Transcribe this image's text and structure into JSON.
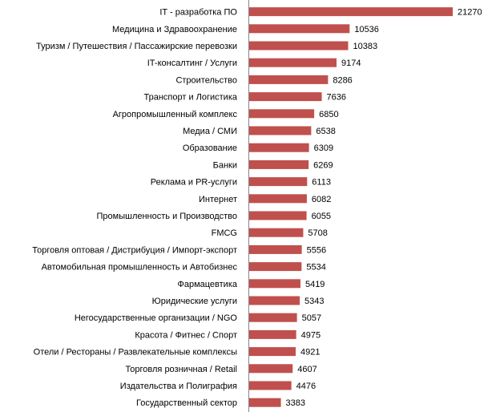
{
  "chart_data": {
    "type": "bar",
    "orientation": "horizontal",
    "title": "",
    "xlabel": "",
    "ylabel": "",
    "xlim": [
      0,
      21270
    ],
    "grid": false,
    "legend": "none",
    "bar_color": "#C0504D",
    "axis_color": "#868686",
    "categories": [
      "IT - разработка ПО",
      "Медицина  и Здравоохранение",
      "Туризм / Путешествия  / Пассажирские перевозки",
      "IT-консалтинг / Услуги",
      "Строительство",
      "Транспорт и Логистика",
      "Агропромышленный  комплекс",
      "Медиа / СМИ",
      "Образование",
      "Банки",
      "Реклама и PR-услуги",
      "Интернет",
      "Промышленность  и Производство",
      "FMCG",
      "Торговля оптовая / Дистрибуция  / Импорт-экспорт",
      "Автомобильная  промышленность и Автобизнес",
      "Фармацевтика",
      "Юридические  услуги",
      "Негосударственные  организации / NGO",
      "Красота / Фитнес / Спорт",
      "Отели / Рестораны / Развлекательные комплексы",
      "Торговля розничная / Retail",
      "Издательства и Полиграфия",
      "Государственный сектор"
    ],
    "values": [
      21270,
      10536,
      10383,
      9174,
      8286,
      7636,
      6850,
      6538,
      6309,
      6269,
      6113,
      6082,
      6055,
      5708,
      5556,
      5534,
      5419,
      5343,
      5057,
      4975,
      4921,
      4607,
      4476,
      3383
    ]
  }
}
